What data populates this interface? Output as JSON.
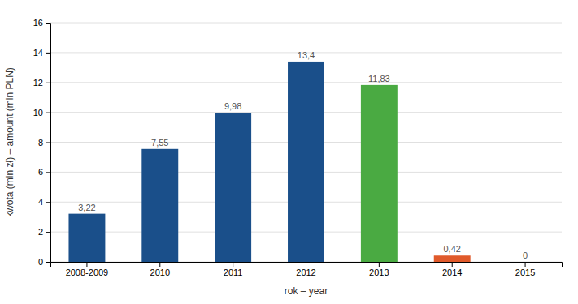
{
  "chart_data": {
    "type": "bar",
    "categories": [
      "2008-2009",
      "2010",
      "2011",
      "2012",
      "2013",
      "2014",
      "2015"
    ],
    "values": [
      3.22,
      7.55,
      9.98,
      13.4,
      11.83,
      0.42,
      0
    ],
    "value_labels": [
      "3,22",
      "7,55",
      "9,98",
      "13,4",
      "11,83",
      "0,42",
      "0"
    ],
    "colors": [
      "#1a4f8a",
      "#1a4f8a",
      "#1a4f8a",
      "#1a4f8a",
      "#4aaa42",
      "#e05a2b",
      "#1a4f8a"
    ],
    "ylabel": "kwota (mln zł) – amount (mln PLN)",
    "xlabel": "rok – year",
    "ylim": [
      0,
      16
    ],
    "yticks": [
      0,
      2,
      4,
      6,
      8,
      10,
      12,
      14,
      16
    ],
    "grid": true,
    "data_labels": true
  }
}
